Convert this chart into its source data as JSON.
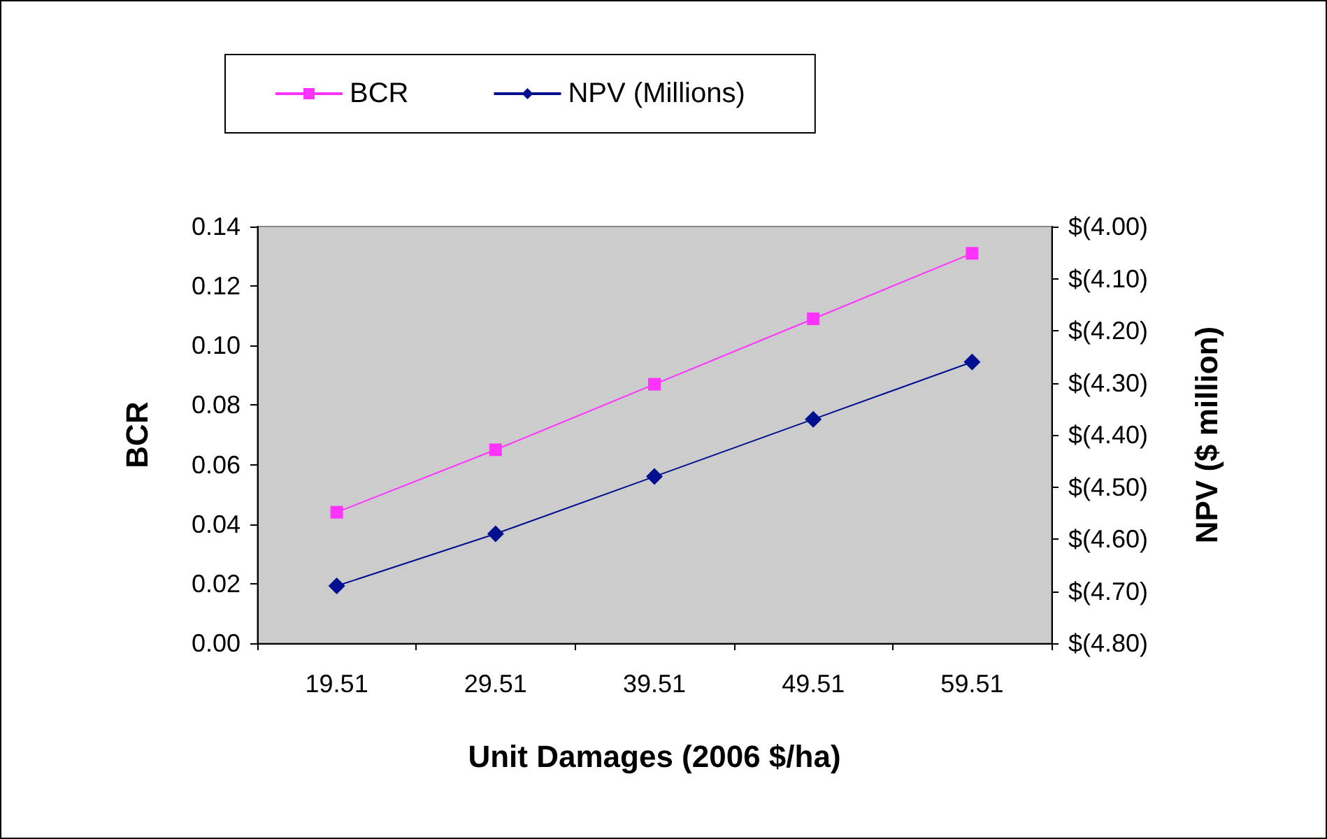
{
  "chart_data": {
    "type": "line",
    "xlabel": "Unit Damages (2006 $/ha)",
    "ylabel": "BCR",
    "y2label": "NPV ($ million)",
    "categories": [
      "19.51",
      "29.51",
      "39.51",
      "49.51",
      "59.51"
    ],
    "series": [
      {
        "name": "BCR",
        "color": "#ff33ff",
        "marker": "square",
        "values": [
          0.044,
          0.065,
          0.087,
          0.109,
          0.131
        ]
      },
      {
        "name": "NPV (Millions)",
        "color": "#000f8f",
        "marker": "diamond",
        "axis": "y2",
        "values": [
          -4.69,
          -4.59,
          -4.48,
          -4.37,
          -4.26
        ]
      }
    ],
    "ylim": [
      0,
      0.14
    ],
    "yticks": [
      {
        "value": 0,
        "label": "0.00"
      },
      {
        "value": 0.02,
        "label": "0.02"
      },
      {
        "value": 0.04,
        "label": "0.04"
      },
      {
        "value": 0.06,
        "label": "0.06"
      },
      {
        "value": 0.08,
        "label": "0.08"
      },
      {
        "value": 0.1,
        "label": "0.10"
      },
      {
        "value": 0.12,
        "label": "0.12"
      },
      {
        "value": 0.14,
        "label": "0.14"
      }
    ],
    "y2lim": [
      -4.8,
      -4.0
    ],
    "y2ticks": [
      {
        "value": -4.8,
        "label": "$(4.80)"
      },
      {
        "value": -4.7,
        "label": "$(4.70)"
      },
      {
        "value": -4.6,
        "label": "$(4.60)"
      },
      {
        "value": -4.5,
        "label": "$(4.50)"
      },
      {
        "value": -4.4,
        "label": "$(4.40)"
      },
      {
        "value": -4.3,
        "label": "$(4.30)"
      },
      {
        "value": -4.2,
        "label": "$(4.20)"
      },
      {
        "value": -4.1,
        "label": "$(4.10)"
      },
      {
        "value": -4.0,
        "label": "$(4.00)"
      }
    ],
    "grid": false,
    "legend": "top",
    "line_style": "solid"
  }
}
